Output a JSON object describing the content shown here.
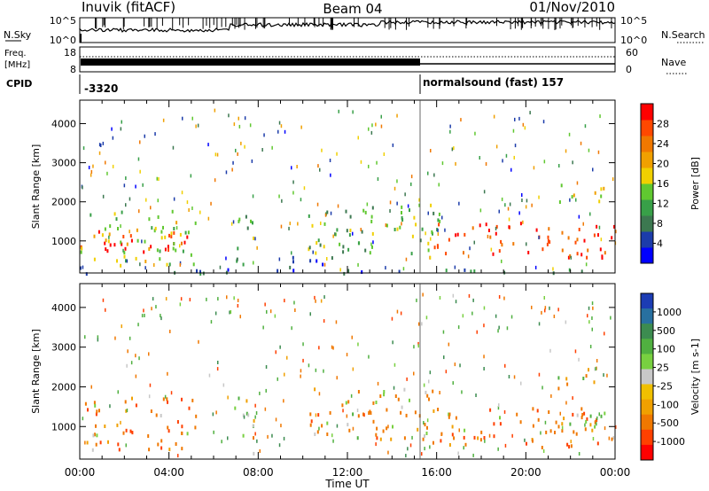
{
  "header": {
    "station": "Inuvik (fitACF)",
    "beam": "Beam 04",
    "date": "01/Nov/2010"
  },
  "top_panels": {
    "nsky_label": "N.Sky",
    "nsky_ticks": [
      "10^5",
      "10^0"
    ],
    "nsearch_label": "N.Search",
    "nsearch_ticks": [
      "10^5",
      "10^0"
    ],
    "freq_label_1": "Freq.",
    "freq_label_2": "[MHz]",
    "freq_ticks": [
      "18",
      "8"
    ],
    "nave_label": "Nave",
    "nave_ticks": [
      "60",
      "0"
    ],
    "cpid_label": "CPID",
    "cpid_1": "-3320",
    "cpid_2": "normalsound (fast) 157"
  },
  "chart_data": [
    {
      "type": "heatmap",
      "quantity": "Power",
      "ylabel": "Slant Range [km]",
      "xlabel": "",
      "x_ticks": [
        "00:00",
        "04:00",
        "08:00",
        "12:00",
        "16:00",
        "20:00",
        "00:00"
      ],
      "xlim_hours": [
        0,
        24
      ],
      "ylim": [
        180,
        4600
      ],
      "y_ticks": [
        1000,
        2000,
        3000,
        4000
      ],
      "colorbar_label": "Power [dB]",
      "colorbar_ticks": [
        "4",
        "8",
        "12",
        "16",
        "20",
        "24",
        "28"
      ],
      "colorbar_colors": [
        "#0000ff",
        "#1c3caa",
        "#3c7850",
        "#38a048",
        "#60c830",
        "#f0d000",
        "#f0a000",
        "#f07800",
        "#ff4800",
        "#ff0000"
      ],
      "echo_bands": [
        {
          "x_hours": [
            0,
            4.8
          ],
          "range_km": [
            700,
            1350
          ],
          "value_db": 30
        },
        {
          "x_hours": [
            0,
            5.2
          ],
          "range_km": [
            400,
            1800
          ],
          "value_db": 16
        },
        {
          "x_hours": [
            6.8,
            7.8
          ],
          "range_km": [
            350,
            1800
          ],
          "value_db": 14
        },
        {
          "x_hours": [
            9.3,
            11.3
          ],
          "range_km": [
            250,
            700
          ],
          "value_db": 6
        },
        {
          "x_hours": [
            10.2,
            16.2
          ],
          "range_km": [
            700,
            2000
          ],
          "value_db": 14
        },
        {
          "x_hours": [
            15.8,
            24
          ],
          "range_km": [
            600,
            1500
          ],
          "value_db": 28
        },
        {
          "x_hours": [
            21.3,
            23.6
          ],
          "range_km": [
            2000,
            2500
          ],
          "value_db": 18
        },
        {
          "x_hours": [
            0,
            24
          ],
          "range_km": [
            200,
            320
          ],
          "value_db": 8
        }
      ]
    },
    {
      "type": "heatmap",
      "quantity": "Velocity",
      "ylabel": "Slant Range [km]",
      "xlabel": "Time UT",
      "x_ticks": [
        "00:00",
        "04:00",
        "08:00",
        "12:00",
        "16:00",
        "20:00",
        "00:00"
      ],
      "xlim_hours": [
        0,
        24
      ],
      "ylim": [
        180,
        4600
      ],
      "y_ticks": [
        1000,
        2000,
        3000,
        4000
      ],
      "colorbar_label": "Velocity [m s-1]",
      "colorbar_ticks": [
        "1000",
        "500",
        "100",
        "25",
        "-25",
        "-100",
        "-500",
        "-1000"
      ],
      "colorbar_colors": [
        "#1c3cb4",
        "#2870a0",
        "#3c8c50",
        "#50b040",
        "#78d040",
        "#c8c8c8",
        "#f0c000",
        "#f0a000",
        "#f07800",
        "#ff4000",
        "#ff0000"
      ],
      "echo_bands": [
        {
          "x_hours": [
            0,
            5.2
          ],
          "range_km": [
            450,
            1800
          ],
          "value_ms": -300
        },
        {
          "x_hours": [
            6.8,
            7.8
          ],
          "range_km": [
            200,
            1800
          ],
          "value_ms": 150
        },
        {
          "x_hours": [
            10.2,
            16.2
          ],
          "range_km": [
            700,
            2000
          ],
          "value_ms": -200
        },
        {
          "x_hours": [
            15.8,
            24
          ],
          "range_km": [
            500,
            1500
          ],
          "value_ms": -300
        },
        {
          "x_hours": [
            21.5,
            24
          ],
          "range_km": [
            1000,
            1400
          ],
          "value_ms": 0
        },
        {
          "x_hours": [
            21.3,
            23.6
          ],
          "range_km": [
            2000,
            2500
          ],
          "value_ms": -200
        }
      ]
    }
  ]
}
